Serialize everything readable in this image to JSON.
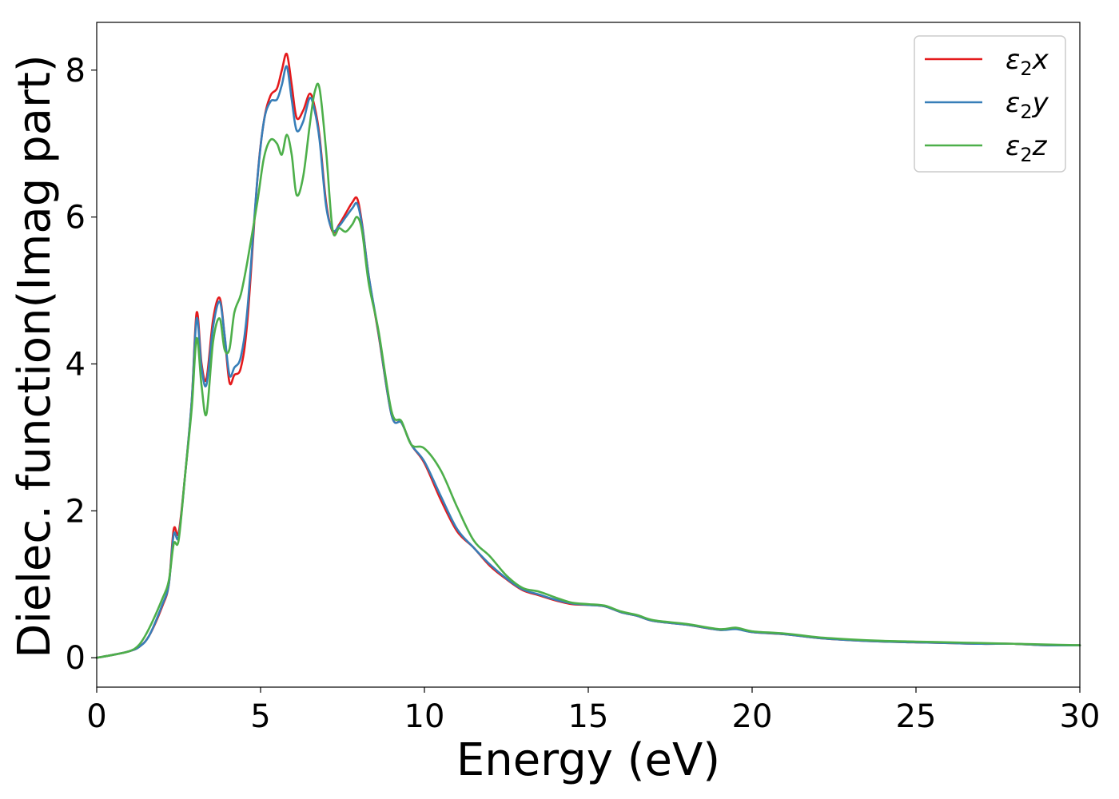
{
  "chart_data": {
    "type": "line",
    "xlabel": "Energy (eV)",
    "ylabel": "Dielec. function(Imag part)",
    "xlim": [
      0,
      30
    ],
    "ylim": [
      -0.4,
      8.65
    ],
    "xticks": [
      0,
      5,
      10,
      15,
      20,
      25,
      30
    ],
    "xtick_labels": [
      "0",
      "5",
      "10",
      "15",
      "20",
      "25",
      "30"
    ],
    "yticks": [
      0,
      2,
      4,
      6,
      8
    ],
    "ytick_labels": [
      "0",
      "2",
      "4",
      "6",
      "8"
    ],
    "grid": false,
    "legend_position": "top-right",
    "legend": [
      {
        "base": "ε",
        "sub": "2",
        "tail": "x",
        "color": "#e41a1c"
      },
      {
        "base": "ε",
        "sub": "2",
        "tail": "y",
        "color": "#377eb8"
      },
      {
        "base": "ε",
        "sub": "2",
        "tail": "z",
        "color": "#4daf4a"
      }
    ],
    "series": [
      {
        "color": "#e41a1c",
        "x": [
          0,
          0.5,
          1.0,
          1.3,
          1.6,
          2.0,
          2.2,
          2.35,
          2.5,
          2.7,
          2.9,
          3.05,
          3.2,
          3.35,
          3.55,
          3.75,
          3.9,
          4.05,
          4.2,
          4.4,
          4.6,
          4.9,
          5.1,
          5.3,
          5.5,
          5.65,
          5.8,
          5.95,
          6.1,
          6.3,
          6.5,
          6.65,
          6.8,
          7.0,
          7.2,
          7.4,
          7.6,
          7.8,
          7.95,
          8.1,
          8.3,
          8.6,
          9.0,
          9.3,
          9.6,
          10.0,
          10.5,
          11.0,
          11.5,
          12.0,
          12.5,
          13.0,
          13.5,
          14.0,
          14.5,
          15.0,
          15.5,
          16.0,
          16.5,
          17.0,
          18.0,
          19.0,
          19.5,
          20.0,
          21.0,
          22.0,
          23.0,
          24.0,
          25.0,
          26.0,
          27.0,
          28.0,
          29.0,
          30.0
        ],
        "values": [
          0,
          0.04,
          0.09,
          0.15,
          0.3,
          0.7,
          1.0,
          1.75,
          1.7,
          2.5,
          3.5,
          4.7,
          4.0,
          3.8,
          4.6,
          4.9,
          4.4,
          3.75,
          3.85,
          3.95,
          4.6,
          6.5,
          7.3,
          7.65,
          7.75,
          8.0,
          8.22,
          7.8,
          7.35,
          7.45,
          7.68,
          7.5,
          7.1,
          6.2,
          5.8,
          5.9,
          6.05,
          6.2,
          6.25,
          5.9,
          5.2,
          4.4,
          3.3,
          3.2,
          2.9,
          2.65,
          2.15,
          1.72,
          1.5,
          1.25,
          1.07,
          0.92,
          0.85,
          0.78,
          0.73,
          0.72,
          0.7,
          0.62,
          0.57,
          0.5,
          0.45,
          0.38,
          0.4,
          0.35,
          0.32,
          0.27,
          0.24,
          0.22,
          0.21,
          0.2,
          0.19,
          0.19,
          0.17,
          0.17
        ]
      },
      {
        "color": "#377eb8",
        "x": [
          0,
          0.5,
          1.0,
          1.3,
          1.6,
          2.0,
          2.2,
          2.35,
          2.5,
          2.7,
          2.9,
          3.05,
          3.2,
          3.35,
          3.55,
          3.75,
          3.9,
          4.05,
          4.2,
          4.4,
          4.6,
          4.9,
          5.1,
          5.3,
          5.5,
          5.65,
          5.8,
          5.95,
          6.1,
          6.3,
          6.5,
          6.65,
          6.8,
          7.0,
          7.2,
          7.4,
          7.6,
          7.8,
          7.95,
          8.1,
          8.3,
          8.6,
          9.0,
          9.3,
          9.6,
          10.0,
          10.5,
          11.0,
          11.5,
          12.0,
          12.5,
          13.0,
          13.5,
          14.0,
          14.5,
          15.0,
          15.5,
          16.0,
          16.5,
          17.0,
          18.0,
          19.0,
          19.5,
          20.0,
          21.0,
          22.0,
          23.0,
          24.0,
          25.0,
          26.0,
          27.0,
          28.0,
          29.0,
          30.0
        ],
        "values": [
          0,
          0.04,
          0.09,
          0.15,
          0.3,
          0.72,
          1.0,
          1.68,
          1.65,
          2.5,
          3.5,
          4.62,
          3.95,
          3.72,
          4.5,
          4.85,
          4.4,
          3.85,
          3.95,
          4.1,
          4.75,
          6.5,
          7.3,
          7.57,
          7.6,
          7.8,
          8.05,
          7.6,
          7.18,
          7.3,
          7.62,
          7.45,
          7.05,
          6.15,
          5.82,
          5.88,
          6.0,
          6.12,
          6.18,
          5.88,
          5.2,
          4.42,
          3.3,
          3.2,
          2.9,
          2.67,
          2.2,
          1.75,
          1.5,
          1.27,
          1.08,
          0.93,
          0.86,
          0.79,
          0.74,
          0.72,
          0.7,
          0.62,
          0.57,
          0.5,
          0.45,
          0.38,
          0.39,
          0.35,
          0.32,
          0.27,
          0.24,
          0.22,
          0.21,
          0.2,
          0.19,
          0.19,
          0.17,
          0.17
        ]
      },
      {
        "color": "#4daf4a",
        "x": [
          0,
          0.5,
          1.0,
          1.3,
          1.6,
          2.0,
          2.2,
          2.35,
          2.5,
          2.7,
          2.9,
          3.05,
          3.2,
          3.35,
          3.55,
          3.75,
          3.9,
          4.05,
          4.2,
          4.4,
          4.6,
          4.9,
          5.1,
          5.3,
          5.5,
          5.65,
          5.8,
          5.95,
          6.1,
          6.3,
          6.5,
          6.65,
          6.8,
          7.0,
          7.2,
          7.4,
          7.6,
          7.8,
          7.95,
          8.1,
          8.3,
          8.6,
          9.0,
          9.3,
          9.6,
          10.0,
          10.5,
          11.0,
          11.5,
          12.0,
          12.5,
          13.0,
          13.5,
          14.0,
          14.5,
          15.0,
          15.5,
          16.0,
          16.5,
          17.0,
          18.0,
          19.0,
          19.5,
          20.0,
          21.0,
          22.0,
          23.0,
          24.0,
          25.0,
          26.0,
          27.0,
          28.0,
          29.0,
          30.0
        ],
        "values": [
          0,
          0.04,
          0.09,
          0.18,
          0.4,
          0.8,
          1.05,
          1.55,
          1.6,
          2.5,
          3.4,
          4.35,
          3.7,
          3.32,
          4.3,
          4.62,
          4.2,
          4.2,
          4.7,
          4.95,
          5.4,
          6.2,
          6.8,
          7.05,
          7.0,
          6.85,
          7.12,
          6.85,
          6.3,
          6.55,
          7.25,
          7.7,
          7.75,
          6.9,
          5.82,
          5.85,
          5.8,
          5.9,
          6.0,
          5.8,
          5.1,
          4.45,
          3.35,
          3.22,
          2.9,
          2.85,
          2.55,
          2.05,
          1.6,
          1.38,
          1.12,
          0.95,
          0.9,
          0.82,
          0.75,
          0.73,
          0.71,
          0.63,
          0.58,
          0.51,
          0.46,
          0.39,
          0.41,
          0.36,
          0.33,
          0.28,
          0.25,
          0.23,
          0.22,
          0.21,
          0.2,
          0.19,
          0.18,
          0.17
        ]
      }
    ]
  }
}
